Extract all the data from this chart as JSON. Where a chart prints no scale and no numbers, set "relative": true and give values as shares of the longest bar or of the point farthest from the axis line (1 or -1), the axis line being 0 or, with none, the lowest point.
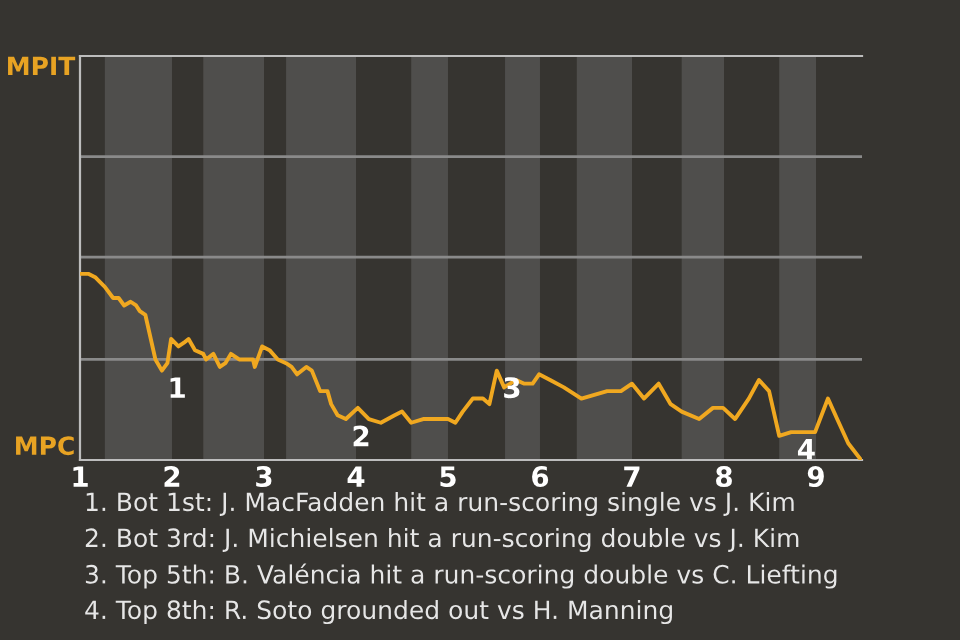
{
  "chart_data": {
    "type": "line",
    "relative": true,
    "x": [
      1.0,
      1.09,
      1.17,
      1.21,
      1.27,
      1.36,
      1.42,
      1.48,
      1.55,
      1.61,
      1.65,
      1.71,
      1.82,
      1.89,
      1.95,
      1.99,
      2.07,
      2.13,
      2.18,
      2.25,
      2.34,
      2.37,
      2.45,
      2.52,
      2.58,
      2.64,
      2.73,
      2.82,
      2.88,
      2.9,
      2.98,
      3.06,
      3.15,
      3.24,
      3.3,
      3.36,
      3.46,
      3.52,
      3.61,
      3.69,
      3.73,
      3.8,
      3.89,
      4.02,
      4.14,
      4.27,
      4.42,
      4.5,
      4.6,
      4.73,
      4.85,
      5.0,
      5.08,
      5.16,
      5.27,
      5.38,
      5.45,
      5.53,
      5.61,
      5.74,
      5.83,
      5.92,
      5.99,
      6.11,
      6.26,
      6.45,
      6.59,
      6.73,
      6.88,
      7.0,
      7.13,
      7.29,
      7.42,
      7.54,
      7.73,
      7.88,
      7.99,
      8.12,
      8.27,
      8.38,
      8.49,
      8.6,
      8.73,
      8.99,
      9.13,
      9.23,
      9.35,
      9.49
    ],
    "series": [
      {
        "color": "#f0a820",
        "values": [
          1.0,
          1.0,
          0.98,
          0.96,
          0.93,
          0.87,
          0.87,
          0.83,
          0.85,
          0.83,
          0.8,
          0.78,
          0.54,
          0.48,
          0.52,
          0.65,
          0.61,
          0.63,
          0.65,
          0.59,
          0.57,
          0.54,
          0.57,
          0.5,
          0.52,
          0.57,
          0.54,
          0.54,
          0.54,
          0.5,
          0.61,
          0.59,
          0.54,
          0.52,
          0.5,
          0.46,
          0.5,
          0.48,
          0.37,
          0.37,
          0.3,
          0.24,
          0.22,
          0.28,
          0.22,
          0.2,
          0.24,
          0.26,
          0.2,
          0.22,
          0.22,
          0.22,
          0.2,
          0.26,
          0.33,
          0.33,
          0.3,
          0.48,
          0.39,
          0.43,
          0.41,
          0.41,
          0.46,
          0.43,
          0.39,
          0.33,
          0.35,
          0.37,
          0.37,
          0.41,
          0.33,
          0.41,
          0.3,
          0.26,
          0.22,
          0.28,
          0.28,
          0.22,
          0.33,
          0.43,
          0.37,
          0.13,
          0.15,
          0.15,
          0.33,
          0.22,
          0.09,
          0.0
        ]
      }
    ],
    "xlim": [
      1,
      9.5
    ],
    "xticks": [
      1,
      2,
      3,
      4,
      5,
      6,
      7,
      8,
      9
    ],
    "marker": "none",
    "line_style": "solid",
    "ref_lines": [
      {
        "axis": "y",
        "value": 0.54,
        "color": "#8a8a8a"
      },
      {
        "axis": "y",
        "value": 1.09,
        "color": "#8a8a8a"
      },
      {
        "axis": "y",
        "value": 1.63,
        "color": "#8a8a8a"
      }
    ],
    "bands": [
      {
        "axis": "x",
        "from": 1.27,
        "to": 2.0,
        "color": "#4f4e4c"
      },
      {
        "axis": "x",
        "from": 2.34,
        "to": 3.0,
        "color": "#4f4e4c"
      },
      {
        "axis": "x",
        "from": 3.24,
        "to": 4.0,
        "color": "#4f4e4c"
      },
      {
        "axis": "x",
        "from": 4.6,
        "to": 5.0,
        "color": "#4f4e4c"
      },
      {
        "axis": "x",
        "from": 5.62,
        "to": 6.0,
        "color": "#4f4e4c"
      },
      {
        "axis": "x",
        "from": 6.4,
        "to": 7.0,
        "color": "#4f4e4c"
      },
      {
        "axis": "x",
        "from": 7.54,
        "to": 8.0,
        "color": "#4f4e4c"
      },
      {
        "axis": "x",
        "from": 8.6,
        "to": 9.0,
        "color": "#4f4e4c"
      }
    ],
    "annotations": [
      {
        "text": "1",
        "x": 1.89,
        "y": 0.48
      },
      {
        "text": "2",
        "x": 3.89,
        "y": 0.22
      },
      {
        "text": "3",
        "x": 5.53,
        "y": 0.48
      },
      {
        "text": "4",
        "x": 8.73,
        "y": 0.15
      },
      "MPIT",
      "MPC",
      "1. Bot 1st: J. MacFadden hit a run-scoring single vs J. Kim",
      "2. Bot 3rd: J. Michielsen hit a run-scoring double vs J. Kim",
      "3. Top 5th: B. Valéncia hit a run-scoring double vs C. Liefting",
      "4. Top 8th: R. Soto grounded out vs H. Manning"
    ]
  }
}
